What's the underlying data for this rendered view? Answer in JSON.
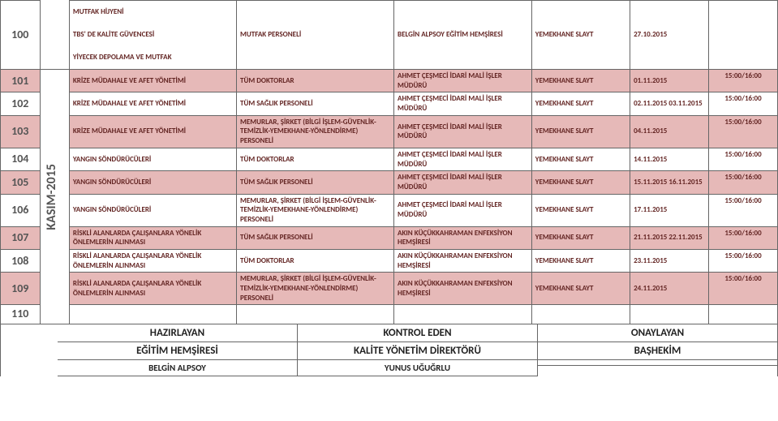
{
  "colors": {
    "band": "#e6b9b8",
    "text": "#632523",
    "border": "#666666",
    "num": "#555555"
  },
  "month_label": "KASIM-2015",
  "header_row": {
    "num": "100",
    "c1_l1": "MUTFAK HİJYENİ",
    "c1_l2": "TBS' DE KALİTE GÜVENCESİ",
    "c1_l3": "YİYECEK DEPOLAMA VE MUTFAK",
    "c2": "MUTFAK PERSONELİ",
    "c3": "BELGİN ALPSOY EĞİTİM HEMŞİRESİ",
    "c4": "YEMEKHANE SLAYT",
    "c5": "27.10.2015"
  },
  "rows": [
    {
      "num": "101",
      "topic": "KRİZE MÜDAHALE VE AFET YÖNETİMİ",
      "who": "TÜM DOKTORLAR",
      "pres": "AHMET ÇEŞMECİ İDARİ MALİ İŞLER MÜDÜRÜ",
      "where": "YEMEKHANE SLAYT",
      "date": "01.11.2015",
      "time": "15:00/16:00",
      "band": true
    },
    {
      "num": "102",
      "topic": "KRİZE MÜDAHALE VE AFET YÖNETİMİ",
      "who": "TÜM SAĞLIK PERSONELİ",
      "pres": "AHMET ÇEŞMECİ İDARİ MALİ İŞLER MÜDÜRÜ",
      "where": "YEMEKHANE SLAYT",
      "date": "02.11.2015 03.11.2015",
      "time": "15:00/16:00",
      "band": false
    },
    {
      "num": "103",
      "topic": "KRİZE MÜDAHALE VE AFET YÖNETİMİ",
      "who": "MEMURLAR, ŞİRKET (BİLGİ İŞLEM-GÜVENLİK-TEMİZLİK-YEMEKHANE-YÖNLENDİRME) PERSONELİ",
      "pres": "AHMET ÇEŞMECİ İDARİ MALİ İŞLER MÜDÜRÜ",
      "where": "YEMEKHANE SLAYT",
      "date": "04.11.2015",
      "time": "15:00/16:00",
      "band": true
    },
    {
      "num": "104",
      "topic": "YANGIN SÖNDÜRÜCÜLERİ",
      "who": "TÜM DOKTORLAR",
      "pres": "AHMET ÇEŞMECİ İDARİ MALİ İŞLER MÜDÜRÜ",
      "where": "YEMEKHANE SLAYT",
      "date": "14.11.2015",
      "time": "15:00/16:00",
      "band": false
    },
    {
      "num": "105",
      "topic": "YANGIN SÖNDÜRÜCÜLERİ",
      "who": "TÜM SAĞLIK PERSONELİ",
      "pres": "AHMET ÇEŞMECİ İDARİ MALİ İŞLER MÜDÜRÜ",
      "where": "YEMEKHANE SLAYT",
      "date": "15.11.2015 16.11.2015",
      "time": "15:00/16:00",
      "band": true
    },
    {
      "num": "106",
      "topic": "YANGIN SÖNDÜRÜCÜLERİ",
      "who": "MEMURLAR, ŞİRKET (BİLGİ İŞLEM-GÜVENLİK-TEMİZLİK-YEMEKHANE-YÖNLENDİRME) PERSONELİ",
      "pres": "AHMET ÇEŞMECİ İDARİ MALİ İŞLER MÜDÜRÜ",
      "where": "YEMEKHANE SLAYT",
      "date": "17.11.2015",
      "time": "15:00/16:00",
      "band": false
    },
    {
      "num": "107",
      "topic": "RİSKLİ ALANLARDA ÇALIŞANLARA YÖNELİK ÖNLEMLERİN ALINMASI",
      "who": "TÜM SAĞLIK PERSONELİ",
      "pres": "AKIN KÜÇÜKKAHRAMAN ENFEKSİYON HEMŞİRESİ",
      "where": "YEMEKHANE SLAYT",
      "date": "21.11.2015 22.11.2015",
      "time": "15:00/16:00",
      "band": true
    },
    {
      "num": "108",
      "topic": "RİSKLİ ALANLARDA ÇALIŞANLARA YÖNELİK ÖNLEMLERİN ALINMASI",
      "who": "TÜM DOKTORLAR",
      "pres": "AKIN KÜÇÜKKAHRAMAN ENFEKSİYON HEMŞİRESİ",
      "where": "YEMEKHANE SLAYT",
      "date": "23.11.2015",
      "time": "15:00/16:00",
      "band": false
    },
    {
      "num": "109",
      "topic": "RİSKLİ ALANLARDA ÇALIŞANLARA YÖNELİK ÖNLEMLERİN ALINMASI",
      "who": "MEMURLAR, ŞİRKET (BİLGİ İŞLEM-GÜVENLİK-TEMİZLİK-YEMEKHANE-YÖNLENDİRME) PERSONELİ",
      "pres": "AKIN KÜÇÜKKAHRAMAN ENFEKSİYON HEMŞİRESİ",
      "where": "YEMEKHANE SLAYT",
      "date": "24.11.2015",
      "time": "15:00/16:00",
      "band": true
    }
  ],
  "empty_row_num": "110",
  "footer": {
    "col1": {
      "l1": "HAZIRLAYAN",
      "l2": "EĞİTİM HEMŞİRESİ",
      "l3": "BELGİN ALPSOY"
    },
    "col2": {
      "l1": "KONTROL EDEN",
      "l2": "KALİTE YÖNETİM DİREKTÖRÜ",
      "l3": "YUNUS UĞUĞRLU"
    },
    "col3": {
      "l1": "ONAYLAYAN",
      "l2": "BAŞHEKİM",
      "l3": ""
    }
  }
}
